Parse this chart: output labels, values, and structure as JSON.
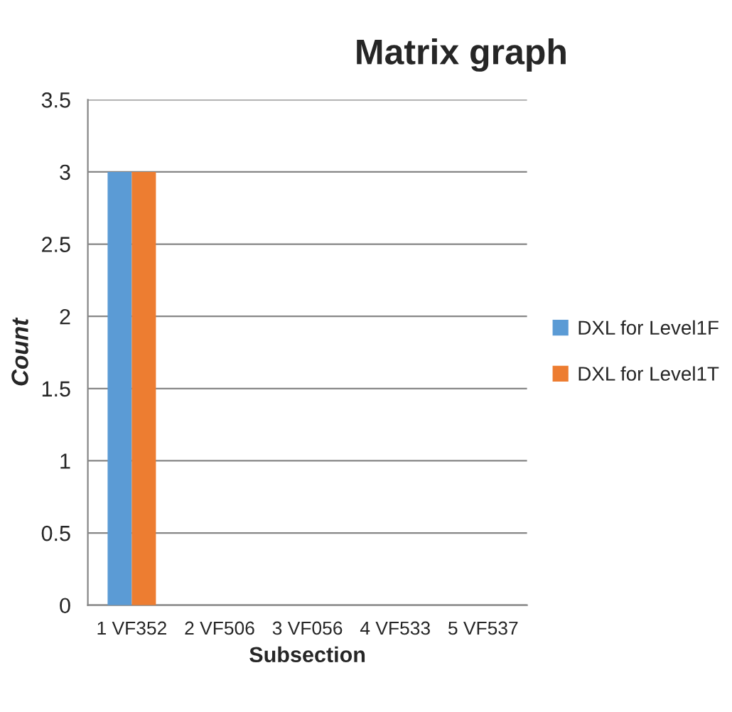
{
  "chart_data": {
    "type": "bar",
    "title": "Matrix graph",
    "xlabel": "Subsection",
    "ylabel": "Count",
    "categories": [
      "1 VF352",
      "2 VF506",
      "3 VF056",
      "4 VF533",
      "5 VF537"
    ],
    "series": [
      {
        "name": "DXL for Level1F",
        "color": "#5b9bd5",
        "values": [
          3,
          0,
          0,
          0,
          0
        ]
      },
      {
        "name": "DXL for Level1T",
        "color": "#ed7d31",
        "values": [
          3,
          0,
          0,
          0,
          0
        ]
      }
    ],
    "ylim": [
      0,
      3.5
    ],
    "yticks": [
      0,
      0.5,
      1,
      1.5,
      2,
      2.5,
      3,
      3.5
    ],
    "grid": "y",
    "legend": "right"
  }
}
